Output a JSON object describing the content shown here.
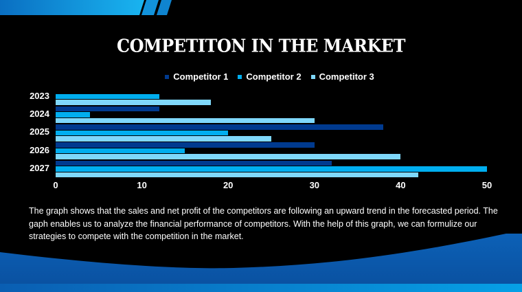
{
  "slide": {
    "title": "COMPETITON IN THE MARKET",
    "description": "The graph shows that the sales and net profit of the competitors are following an upward trend in the forecasted period. The gaph enables us to analyze the financial performance of competitors. With the help of this graph, we can formulize our strategies to compete with the competition in the market."
  },
  "colors": {
    "background": "#000000",
    "competitor_1": "#003a8f",
    "competitor_2": "#00aeef",
    "competitor_3": "#7fd8fb",
    "accent_blue": "#0a5fb4"
  },
  "legend": [
    {
      "label": "Competitor 1",
      "color": "#003a8f"
    },
    {
      "label": "Competitor 2",
      "color": "#00aeef"
    },
    {
      "label": "Competitor 3",
      "color": "#7fd8fb"
    }
  ],
  "chart_data": {
    "type": "bar",
    "orientation": "horizontal",
    "title": "COMPETITON IN THE MARKET",
    "categories": [
      "2023",
      "2024",
      "2025",
      "2026",
      "2027"
    ],
    "series": [
      {
        "name": "Competitor 1",
        "values": [
          0,
          12,
          38,
          30,
          32
        ]
      },
      {
        "name": "Competitor 2",
        "values": [
          12,
          4,
          20,
          15,
          50
        ]
      },
      {
        "name": "Competitor 3",
        "values": [
          18,
          30,
          25,
          40,
          42
        ]
      }
    ],
    "xlabel": "",
    "ylabel": "",
    "xlim": [
      0,
      50
    ],
    "x_ticks": [
      "0",
      "10",
      "20",
      "30",
      "40",
      "50"
    ],
    "grid": false,
    "legend_position": "top"
  }
}
